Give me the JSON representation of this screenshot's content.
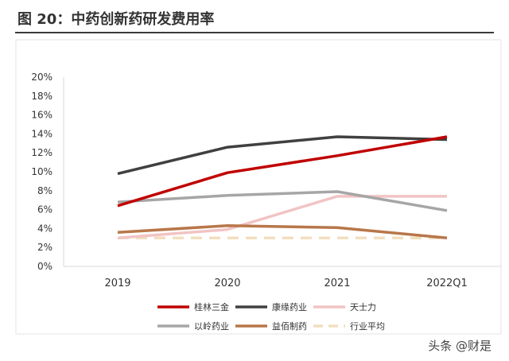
{
  "header": {
    "figure_title": "图 20：中药创新药研发费用率"
  },
  "watermark": "头条 @财是",
  "chart_data": {
    "type": "line",
    "title": "中药创新药研发费用率",
    "xlabel": "",
    "ylabel": "",
    "categories": [
      "2019",
      "2020",
      "2021",
      "2022Q1"
    ],
    "ylim": [
      0,
      20
    ],
    "yticks": [
      "0%",
      "2%",
      "4%",
      "6%",
      "8%",
      "10%",
      "12%",
      "14%",
      "16%",
      "18%",
      "20%"
    ],
    "grid": false,
    "legend_position": "bottom",
    "series": [
      {
        "name": "桂林三金",
        "color": "#c00000",
        "style": "solid",
        "values": [
          6.4,
          9.9,
          11.7,
          13.7
        ]
      },
      {
        "name": "康缘药业",
        "color": "#404040",
        "style": "solid",
        "values": [
          9.8,
          12.6,
          13.7,
          13.4
        ]
      },
      {
        "name": "天士力",
        "color": "#f2c4c4",
        "style": "solid",
        "values": [
          3.0,
          3.9,
          7.4,
          7.4
        ]
      },
      {
        "name": "以岭药业",
        "color": "#a6a6a6",
        "style": "solid",
        "values": [
          6.8,
          7.5,
          7.9,
          5.9
        ]
      },
      {
        "name": "益佰制药",
        "color": "#b8774a",
        "style": "solid",
        "values": [
          3.6,
          4.3,
          4.1,
          3.0
        ]
      },
      {
        "name": "行业平均",
        "color": "#f2dfc0",
        "style": "dashed",
        "values": [
          3.0,
          3.0,
          3.0,
          3.0
        ]
      }
    ]
  }
}
